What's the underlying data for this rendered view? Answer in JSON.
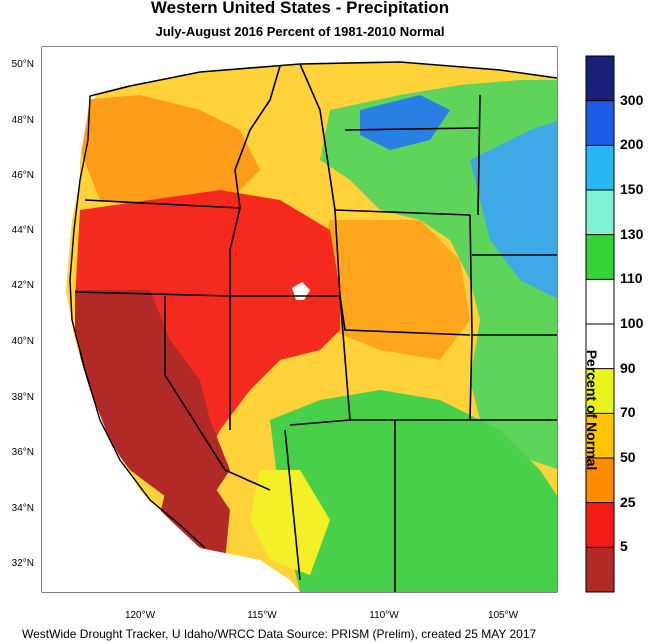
{
  "title": "Western United States - Precipitation",
  "subtitle": "July-August 2016  Percent of 1981-2010 Normal",
  "footer": "WestWide Drought Tracker, U Idaho/WRCC Data Source: PRISM (Prelim), created 25 MAY 2017",
  "lat_labels": [
    "50°N",
    "48°N",
    "46°N",
    "44°N",
    "42°N",
    "40°N",
    "38°N",
    "36°N",
    "34°N",
    "32°N"
  ],
  "lon_labels": [
    "120°W",
    "115°W",
    "110°W",
    "105°W"
  ],
  "colorbar": {
    "title": "Percent of Normal",
    "labels": [
      "300",
      "200",
      "150",
      "130",
      "110",
      "100",
      "90",
      "70",
      "50",
      "25",
      "5"
    ],
    "colors": [
      "#1a1f7a",
      "#1d5ae6",
      "#27b7f2",
      "#7ff2d3",
      "#35d436",
      "#ffffff",
      "#ffffff",
      "#e8f51a",
      "#ffc400",
      "#ff8c00",
      "#f51a14",
      "#b22a28"
    ]
  },
  "colors": {
    "ocean": "#ffffff",
    "border": "#000000"
  }
}
